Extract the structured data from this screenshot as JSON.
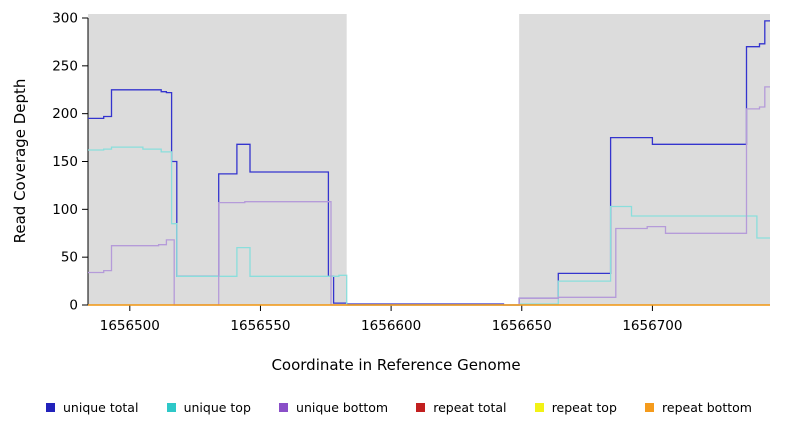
{
  "chart_data": {
    "type": "line",
    "title": "",
    "xlabel": "Coordinate in Reference Genome",
    "ylabel": "Read Coverage Depth",
    "line_style": "step-after",
    "xlim": [
      1656484,
      1656745
    ],
    "ylim": [
      0,
      300
    ],
    "xticks": [
      1656500,
      1656550,
      1656600,
      1656650,
      1656700
    ],
    "yticks": [
      0,
      50,
      100,
      150,
      200,
      250,
      300
    ],
    "background_bands": [
      {
        "x_start": 1656484,
        "x_end": 1656583,
        "color": "#DCDCDC"
      },
      {
        "x_start": 1656649,
        "x_end": 1656745,
        "color": "#DCDCDC"
      }
    ],
    "series": [
      {
        "name": "unique total",
        "color": "#2222BB",
        "line_color": "#3434CE",
        "points": [
          [
            1656484,
            195
          ],
          [
            1656490,
            197
          ],
          [
            1656493,
            225
          ],
          [
            1656512,
            223
          ],
          [
            1656514,
            222
          ],
          [
            1656516,
            150
          ],
          [
            1656518,
            30
          ],
          [
            1656534,
            137
          ],
          [
            1656541,
            168
          ],
          [
            1656546,
            139
          ],
          [
            1656576,
            30
          ],
          [
            1656578,
            2
          ],
          [
            1656583,
            1
          ],
          [
            1656640,
            1
          ],
          [
            1656643,
            0
          ],
          [
            1656649,
            7
          ],
          [
            1656664,
            33
          ],
          [
            1656684,
            175
          ],
          [
            1656700,
            168
          ],
          [
            1656736,
            270
          ],
          [
            1656741,
            273
          ],
          [
            1656743,
            297
          ],
          [
            1656745,
            297
          ]
        ]
      },
      {
        "name": "unique top",
        "color": "#2EC8C8",
        "line_color": "#8ADEDC",
        "points": [
          [
            1656484,
            162
          ],
          [
            1656490,
            163
          ],
          [
            1656493,
            165
          ],
          [
            1656505,
            163
          ],
          [
            1656512,
            160
          ],
          [
            1656516,
            85
          ],
          [
            1656518,
            30
          ],
          [
            1656541,
            60
          ],
          [
            1656546,
            30
          ],
          [
            1656580,
            31
          ],
          [
            1656583,
            0
          ],
          [
            1656649,
            1
          ],
          [
            1656664,
            25
          ],
          [
            1656684,
            103
          ],
          [
            1656692,
            93
          ],
          [
            1656737,
            93
          ],
          [
            1656740,
            70
          ],
          [
            1656745,
            70
          ]
        ]
      },
      {
        "name": "unique bottom",
        "color": "#8A4FC8",
        "line_color": "#B59BD9",
        "points": [
          [
            1656484,
            34
          ],
          [
            1656490,
            36
          ],
          [
            1656493,
            62
          ],
          [
            1656511,
            63
          ],
          [
            1656514,
            68
          ],
          [
            1656517,
            0
          ],
          [
            1656534,
            107
          ],
          [
            1656544,
            108
          ],
          [
            1656577,
            0
          ],
          [
            1656649,
            7
          ],
          [
            1656664,
            8
          ],
          [
            1656686,
            80
          ],
          [
            1656698,
            82
          ],
          [
            1656705,
            75
          ],
          [
            1656736,
            205
          ],
          [
            1656741,
            207
          ],
          [
            1656743,
            228
          ],
          [
            1656745,
            228
          ]
        ]
      },
      {
        "name": "repeat total",
        "color": "#C21F1F",
        "line_color": "#C21F1F",
        "points": [
          [
            1656484,
            0
          ],
          [
            1656745,
            0
          ]
        ]
      },
      {
        "name": "repeat top",
        "color": "#F2F215",
        "line_color": "#F2F215",
        "points": [
          [
            1656484,
            0
          ],
          [
            1656745,
            0
          ]
        ]
      },
      {
        "name": "repeat bottom",
        "color": "#F59B1C",
        "line_color": "#F59B1C",
        "points": [
          [
            1656484,
            0
          ],
          [
            1656745,
            0
          ]
        ]
      }
    ]
  },
  "axes": {
    "x_label": "Coordinate in Reference Genome",
    "y_label": "Read Coverage Depth",
    "x_tick_labels": [
      "1656500",
      "1656550",
      "1656600",
      "1656650",
      "1656700"
    ],
    "y_tick_labels": [
      "0",
      "50",
      "100",
      "150",
      "200",
      "250",
      "300"
    ]
  },
  "legend": {
    "items": [
      {
        "label": "unique total",
        "color": "#2222BB"
      },
      {
        "label": "unique top",
        "color": "#2EC8C8"
      },
      {
        "label": "unique bottom",
        "color": "#8A4FC8"
      },
      {
        "label": "repeat total",
        "color": "#C21F1F"
      },
      {
        "label": "repeat top",
        "color": "#F2F215"
      },
      {
        "label": "repeat bottom",
        "color": "#F59B1C"
      }
    ]
  }
}
